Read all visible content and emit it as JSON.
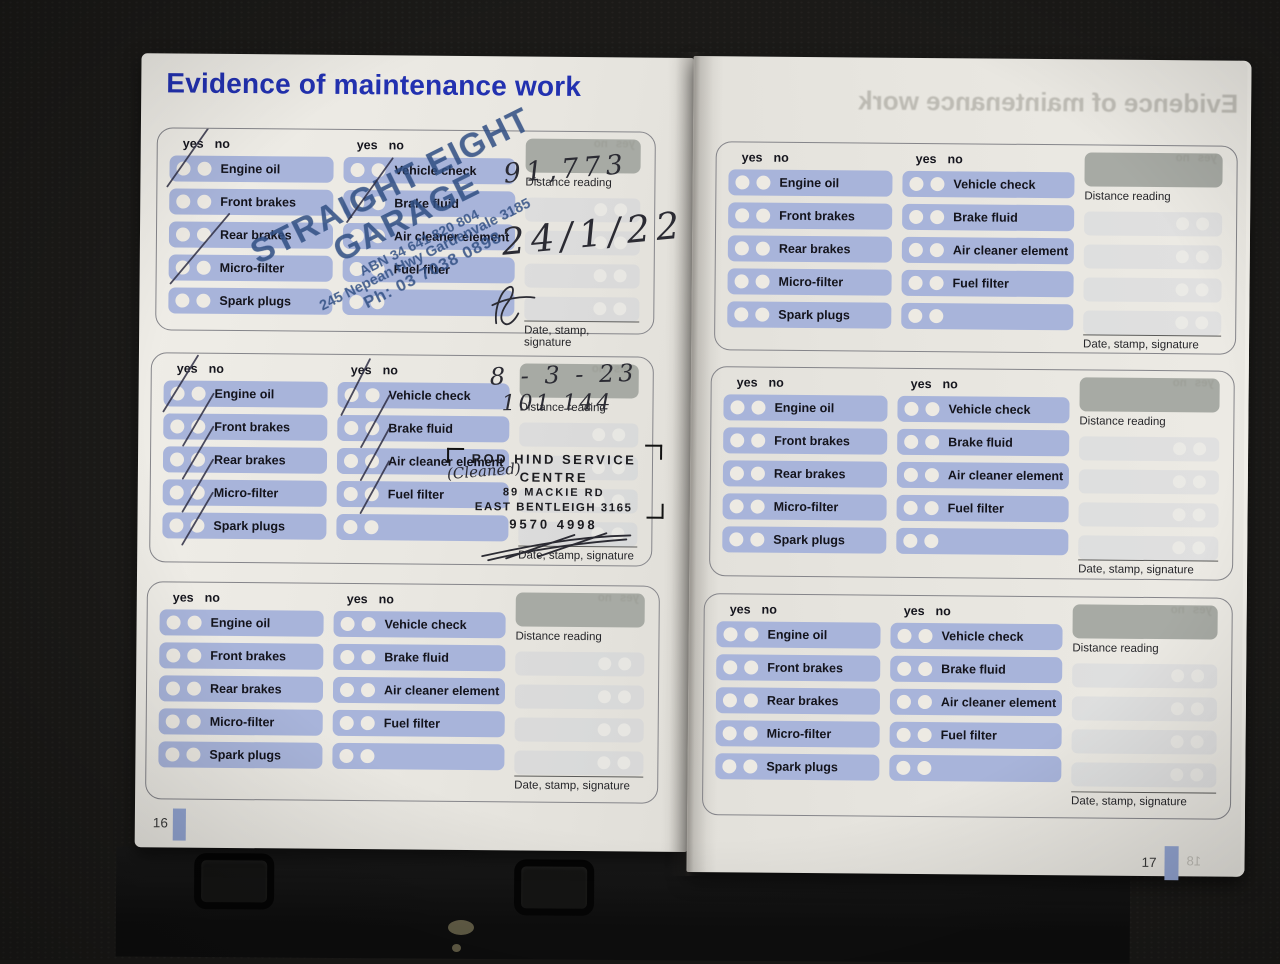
{
  "title": "Evidence of maintenance work",
  "labels": {
    "yes": "yes",
    "no": "no",
    "distance_reading": "Distance reading",
    "date_stamp_signature": "Date, stamp, signature"
  },
  "checklist_column1": [
    "Engine oil",
    "Front brakes",
    "Rear brakes",
    "Micro-filter",
    "Spark plugs"
  ],
  "checklist_column2": [
    "Vehicle check",
    "Brake fluid",
    "Air cleaner element",
    "Fuel filter"
  ],
  "pages": {
    "left_number": "16",
    "right_number": "17",
    "ghost_show_through_number": "18"
  },
  "service_entries": [
    {
      "block": "left-page-top",
      "distance_reading": "91,773",
      "date": "24/1/22",
      "stamp_lines": [
        "STRAIGHT EIGHT",
        "GARAGE",
        "ABN 34 641 820 804",
        "245 Nepean Hwy Gardenvale 3185",
        "Ph: 03 7038 0898"
      ],
      "checks": {
        "Engine oil": "yes",
        "Micro-filter": "yes",
        "Brake fluid": "yes"
      }
    },
    {
      "block": "left-page-middle",
      "date": "8 - 3 - 23",
      "distance_reading": "101 144",
      "handwritten_note": "(Cleaned)",
      "stamp_lines": [
        "ROD HIND SERVICE",
        "CENTRE",
        "89 MACKIE RD",
        "EAST BENTLEIGH 3165",
        "9570 4998"
      ],
      "checks": {
        "Engine oil": "yes",
        "Front brakes": "no",
        "Rear brakes": "no",
        "Micro-filter": "no",
        "Spark plugs": "no",
        "Vehicle check": "yes",
        "Brake fluid": "no",
        "Air cleaner element": "no",
        "Fuel filter": "no"
      }
    }
  ],
  "colors": {
    "title_blue": "#2231b0",
    "pill_blue": "#a8b4da",
    "distance_box_gray": "#a7aaa4",
    "page_tab_blue": "#93a5d2",
    "stamp_blue": "#2f4d82",
    "stamp_black": "#1b1b1f"
  }
}
